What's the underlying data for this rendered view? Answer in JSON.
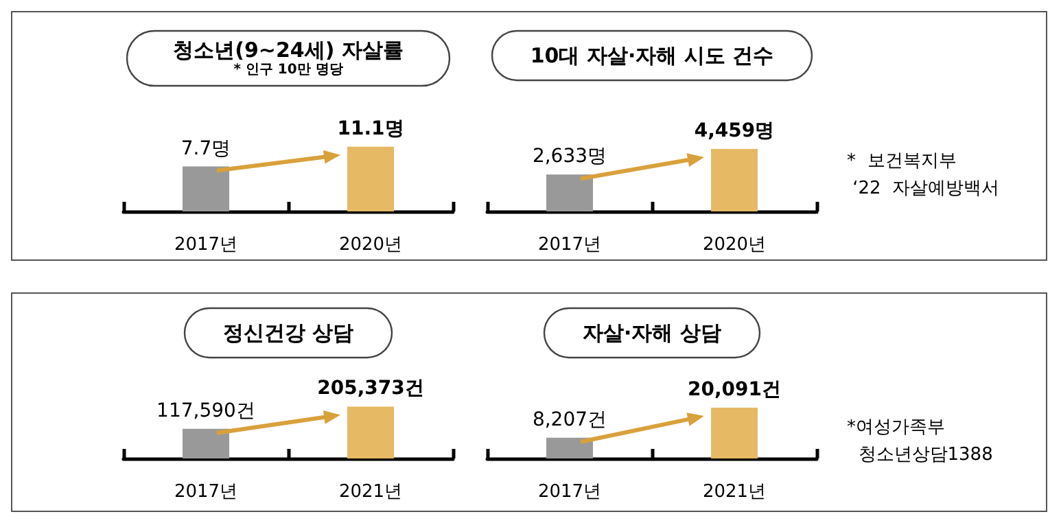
{
  "chart_data": [
    {
      "type": "bar",
      "title": "청소년(9~24세) 자살률",
      "subtitle": "* 인구 10만 명당",
      "categories": [
        "2017년",
        "2020년"
      ],
      "values": [
        7.7,
        11.1
      ],
      "value_labels": [
        "7.7명",
        "11.1명"
      ],
      "colors": [
        "#999999",
        "#e6b964"
      ]
    },
    {
      "type": "bar",
      "title": "10대 자살·자해 시도 건수",
      "categories": [
        "2017년",
        "2020년"
      ],
      "values": [
        2633,
        4459
      ],
      "value_labels": [
        "2,633명",
        "4,459명"
      ],
      "colors": [
        "#999999",
        "#e6b964"
      ],
      "annotations": [
        "*  보건복지부\n ‘22  자살예방백서"
      ]
    },
    {
      "type": "bar",
      "title": "정신건강 상담",
      "categories": [
        "2017년",
        "2021년"
      ],
      "values": [
        117590,
        205373
      ],
      "value_labels": [
        "117,590건",
        "205,373건"
      ],
      "colors": [
        "#999999",
        "#e6b964"
      ]
    },
    {
      "type": "bar",
      "title": "자살·자해 상담",
      "categories": [
        "2017년",
        "2021년"
      ],
      "values": [
        8207,
        20091
      ],
      "value_labels": [
        "8,207건",
        "20,091건"
      ],
      "colors": [
        "#999999",
        "#e6b964"
      ],
      "annotations": [
        "*여성가족부\n  청소년상담1388"
      ]
    }
  ]
}
